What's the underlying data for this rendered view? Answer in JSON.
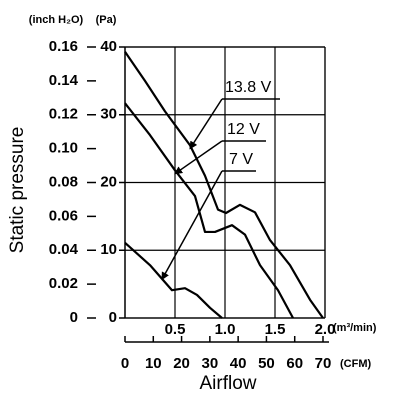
{
  "chart_data": {
    "type": "line",
    "y_label": "Static pressure",
    "x_label": "Airflow",
    "y_unit": "(Pa)",
    "y2_unit": "(inch H₂O)",
    "x_unit": "(m³/min)",
    "x2_unit": "(CFM)",
    "xlim": [
      0,
      2.0
    ],
    "xticks": [
      0.5,
      {
        "value": 1.0,
        "label": "1.0"
      },
      1.5,
      {
        "value": 2.0,
        "label": "2.0"
      }
    ],
    "x2lim": [
      0,
      70
    ],
    "x2ticks": [
      0,
      10,
      20,
      30,
      40,
      50,
      60,
      70
    ],
    "ylim": [
      0,
      40
    ],
    "yticks": [
      0,
      10,
      20,
      30,
      40
    ],
    "y2lim": [
      0,
      0.16
    ],
    "y2ticks": [
      0,
      0.02,
      0.04,
      0.06,
      0.08,
      {
        "value": 0.1,
        "label": "0.10"
      },
      0.12,
      0.14,
      0.16
    ],
    "grid": true,
    "series": [
      {
        "name": "13.8 V",
        "color": "#000000",
        "x": [
          0,
          0.2,
          0.4,
          0.65,
          0.8,
          0.93,
          1.01,
          1.15,
          1.3,
          1.45,
          1.65,
          1.85,
          1.98
        ],
        "values": [
          39.3,
          35,
          30.5,
          25.5,
          21,
          16,
          15.5,
          16.7,
          15.6,
          11.5,
          7.8,
          2.7,
          0
        ]
      },
      {
        "name": "12 V",
        "color": "#000000",
        "x": [
          0,
          0.25,
          0.5,
          0.7,
          0.8,
          0.9,
          1.07,
          1.2,
          1.35,
          1.53,
          1.68
        ],
        "values": [
          31.7,
          27,
          21.8,
          18,
          12.7,
          12.7,
          13.7,
          12.3,
          7.8,
          4.1,
          0
        ]
      },
      {
        "name": "7 V",
        "color": "#000000",
        "x": [
          0,
          0.25,
          0.47,
          0.6,
          0.72,
          0.85,
          0.97
        ],
        "values": [
          11.1,
          7.8,
          4.1,
          4.4,
          3.4,
          1.5,
          0
        ]
      }
    ]
  }
}
